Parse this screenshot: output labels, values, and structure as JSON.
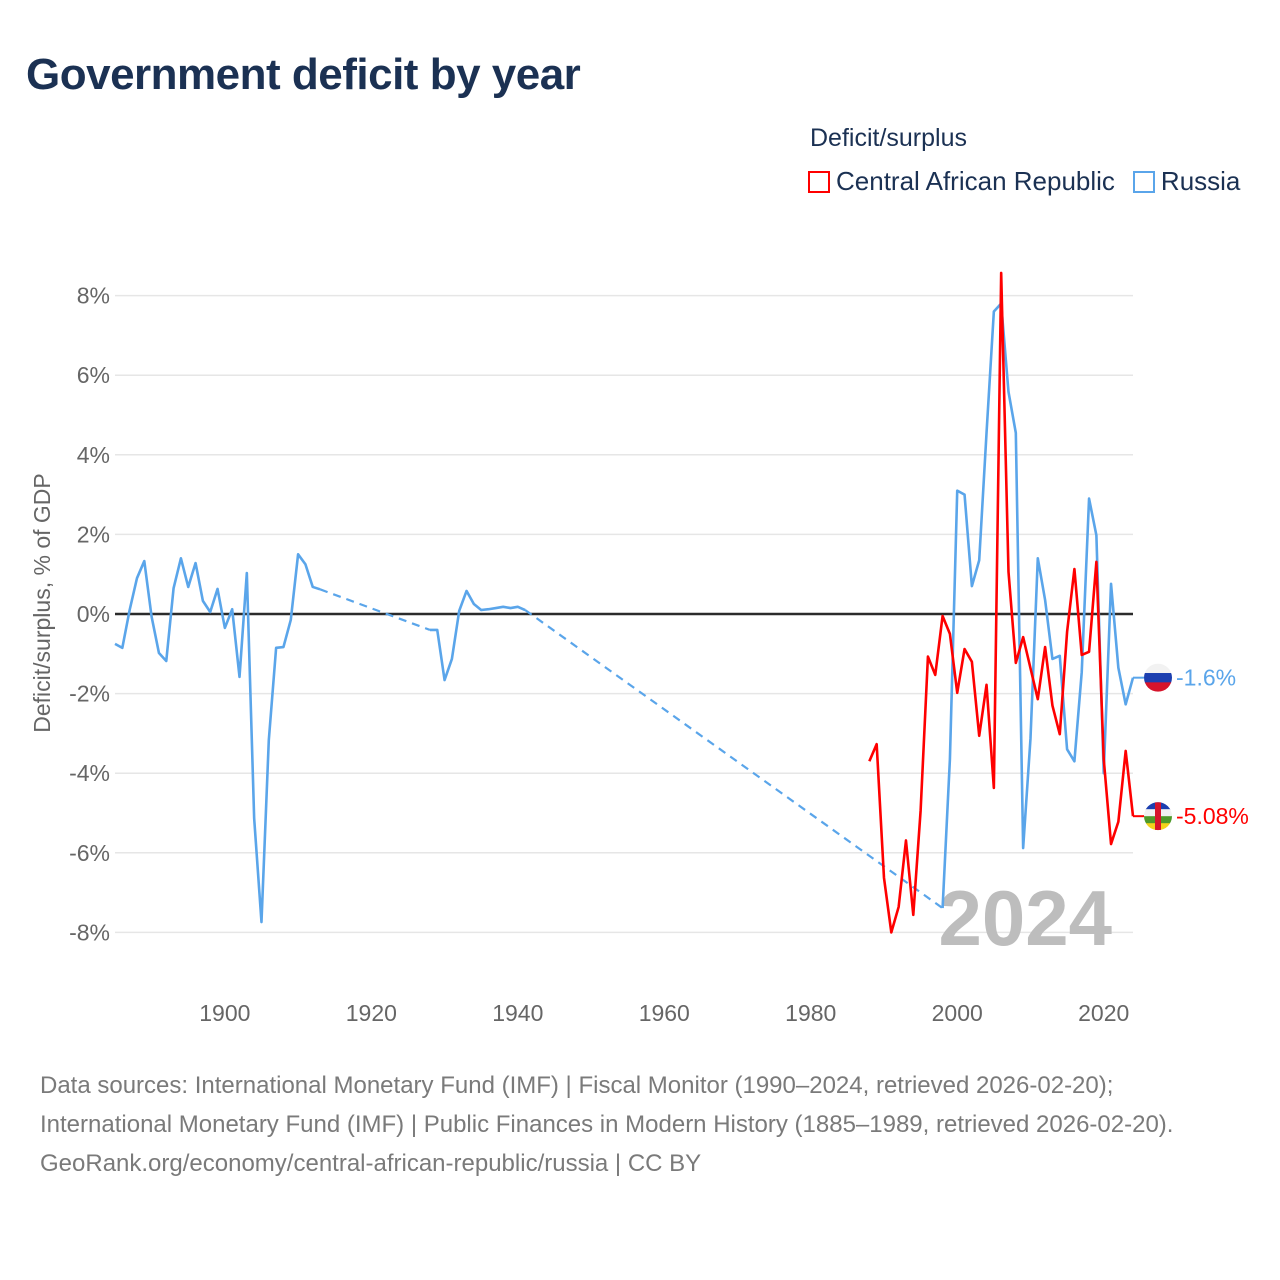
{
  "title": "Government deficit by year",
  "legend": {
    "title": "Deficit/surplus",
    "items": [
      {
        "label": "Central African Republic",
        "color": "#ff0000"
      },
      {
        "label": "Russia",
        "color": "#5aa5ea"
      }
    ]
  },
  "chart_data": {
    "type": "line",
    "title": "Government deficit by year",
    "xlabel": "",
    "ylabel": "Deficit/surplus, % of GDP",
    "xlim": [
      1885,
      2024
    ],
    "ylim": [
      -8.5,
      8.5
    ],
    "x_ticks": [
      1900,
      1920,
      1940,
      1960,
      1980,
      2000,
      2020
    ],
    "x_tick_labels": [
      "1900",
      "1920",
      "1940",
      "1960",
      "1980",
      "2000",
      "2020"
    ],
    "y_ticks": [
      8,
      6,
      4,
      2,
      0,
      -2,
      -4,
      -6,
      -8
    ],
    "y_tick_labels": [
      "8%",
      "6%",
      "4%",
      "2%",
      "0%",
      "-2%",
      "-4%",
      "-6%",
      "-8%"
    ],
    "grid": true,
    "year_overlay": "2024",
    "series": [
      {
        "name": "Central African Republic",
        "color": "#ff0000",
        "end_label": "-5.08%",
        "x": [
          1988,
          1989,
          1990,
          1991,
          1992,
          1993,
          1994,
          1995,
          1996,
          1997,
          1998,
          1999,
          2000,
          2001,
          2002,
          2003,
          2004,
          2005,
          2006,
          2007,
          2008,
          2009,
          2010,
          2011,
          2012,
          2013,
          2014,
          2015,
          2016,
          2017,
          2018,
          2019,
          2020,
          2021,
          2022,
          2023,
          2024
        ],
        "y": [
          -3.7,
          -3.27,
          -6.63,
          -8.0,
          -7.36,
          -5.69,
          -7.56,
          -4.94,
          -1.07,
          -1.53,
          -0.05,
          -0.5,
          -1.98,
          -0.88,
          -1.2,
          -3.06,
          -1.78,
          -4.37,
          8.57,
          1.06,
          -1.23,
          -0.58,
          -1.36,
          -2.14,
          -0.83,
          -2.3,
          -3.02,
          -0.45,
          1.13,
          -1.03,
          -0.95,
          1.31,
          -3.64,
          -5.78,
          -5.22,
          -3.44,
          -5.08
        ]
      },
      {
        "name": "Russia",
        "color": "#5aa5ea",
        "end_label": "-1.6%",
        "x": [
          1885,
          1886,
          1887,
          1888,
          1889,
          1890,
          1891,
          1892,
          1893,
          1894,
          1895,
          1896,
          1897,
          1898,
          1899,
          1900,
          1901,
          1902,
          1903,
          1904,
          1905,
          1906,
          1907,
          1908,
          1909,
          1910,
          1911,
          1912,
          1913,
          1928,
          1929,
          1930,
          1931,
          1932,
          1933,
          1934,
          1935,
          1936,
          1937,
          1938,
          1939,
          1940,
          1941,
          1998,
          1999,
          2000,
          2001,
          2002,
          2003,
          2004,
          2005,
          2006,
          2007,
          2008,
          2009,
          2010,
          2011,
          2012,
          2013,
          2014,
          2015,
          2016,
          2017,
          2018,
          2019,
          2020,
          2021,
          2022,
          2023,
          2024
        ],
        "y": [
          -0.75,
          -0.85,
          0.1,
          0.9,
          1.33,
          -0.07,
          -0.98,
          -1.18,
          0.65,
          1.4,
          0.68,
          1.28,
          0.33,
          0.05,
          0.63,
          -0.35,
          0.12,
          -1.58,
          1.03,
          -5.13,
          -7.74,
          -3.17,
          -0.85,
          -0.83,
          -0.15,
          1.5,
          1.25,
          0.68,
          0.62,
          -0.4,
          -0.4,
          -1.66,
          -1.13,
          0.08,
          0.58,
          0.25,
          0.1,
          0.12,
          0.15,
          0.18,
          0.15,
          0.18,
          0.1,
          -7.39,
          -3.65,
          3.1,
          3.0,
          0.7,
          1.35,
          4.55,
          7.6,
          7.8,
          5.58,
          4.55,
          -5.88,
          -3.14,
          1.4,
          0.35,
          -1.13,
          -1.05,
          -3.4,
          -3.7,
          -1.46,
          2.9,
          1.98,
          -4.0,
          0.76,
          -1.35,
          -2.27,
          -1.6
        ]
      }
    ]
  },
  "footer": {
    "sources": "Data sources: International Monetary Fund (IMF) | Fiscal Monitor (1990–2024, retrieved 2026-02-20); International Monetary Fund (IMF) | Public Finances in Modern History (1885–1989, retrieved 2026-02-20).",
    "attribution": "GeoRank.org/economy/central-african-republic/russia | CC BY"
  }
}
